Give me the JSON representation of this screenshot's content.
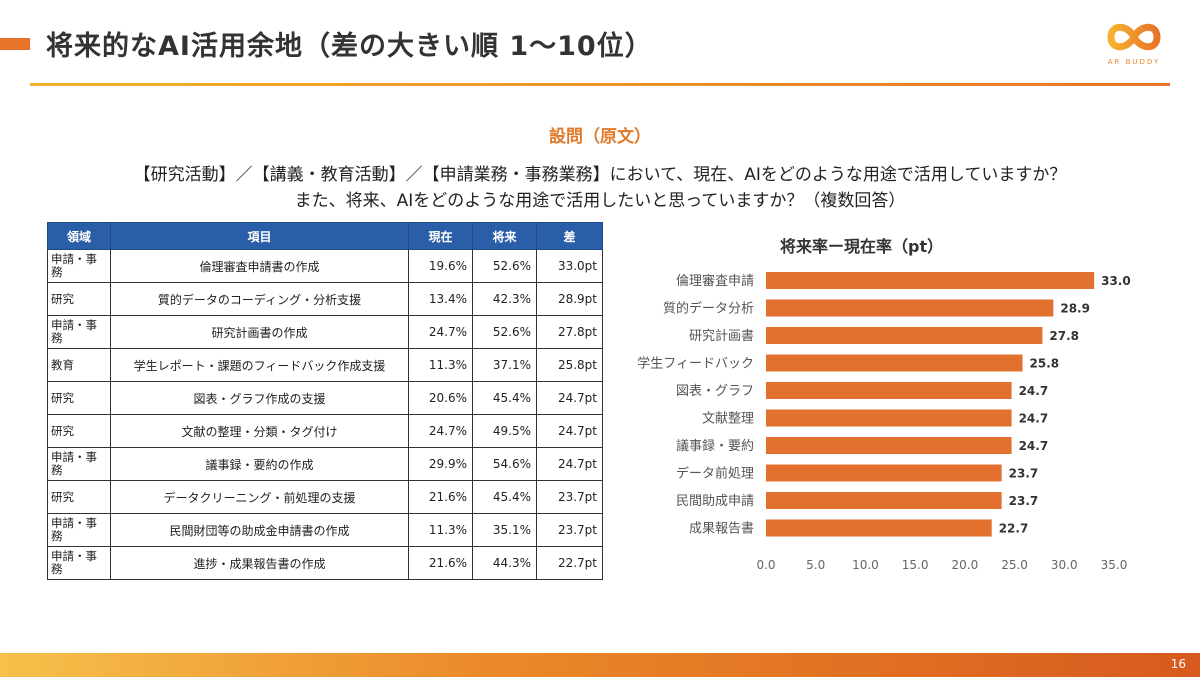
{
  "header": {
    "title": "将来的なAI活用余地（差の大きい順 1〜10位）",
    "logo_text": "AR BUDDY",
    "accent_color": "#e8742a"
  },
  "question": {
    "heading": "設問（原文）",
    "line1": "【研究活動】／【講義・教育活動】／【申請業務・事務業務】において、現在、AIをどのような用途で活用していますか？",
    "line2": "また、将来、AIをどのような用途で活用したいと思っていますか？（複数回答）"
  },
  "table": {
    "headers": [
      "領域",
      "項目",
      "現在",
      "将来",
      "差"
    ],
    "rows": [
      {
        "area": "申請・事務",
        "item": "倫理審査申請書の作成",
        "current": "19.6%",
        "future": "52.6%",
        "diff": "33.0pt"
      },
      {
        "area": "研究",
        "item": "質的データのコーディング・分析支援",
        "current": "13.4%",
        "future": "42.3%",
        "diff": "28.9pt"
      },
      {
        "area": "申請・事務",
        "item": "研究計画書の作成",
        "current": "24.7%",
        "future": "52.6%",
        "diff": "27.8pt"
      },
      {
        "area": "教育",
        "item": "学生レポート・課題のフィードバック作成支援",
        "current": "11.3%",
        "future": "37.1%",
        "diff": "25.8pt"
      },
      {
        "area": "研究",
        "item": "図表・グラフ作成の支援",
        "current": "20.6%",
        "future": "45.4%",
        "diff": "24.7pt"
      },
      {
        "area": "研究",
        "item": "文献の整理・分類・タグ付け",
        "current": "24.7%",
        "future": "49.5%",
        "diff": "24.7pt"
      },
      {
        "area": "申請・事務",
        "item": "議事録・要約の作成",
        "current": "29.9%",
        "future": "54.6%",
        "diff": "24.7pt"
      },
      {
        "area": "研究",
        "item": "データクリーニング・前処理の支援",
        "current": "21.6%",
        "future": "45.4%",
        "diff": "23.7pt"
      },
      {
        "area": "申請・事務",
        "item": "民間財団等の助成金申請書の作成",
        "current": "11.3%",
        "future": "35.1%",
        "diff": "23.7pt"
      },
      {
        "area": "申請・事務",
        "item": "進捗・成果報告書の作成",
        "current": "21.6%",
        "future": "44.3%",
        "diff": "22.7pt"
      }
    ]
  },
  "chart_data": {
    "type": "bar",
    "orientation": "horizontal",
    "title": "将来率ー現在率（pt）",
    "categories": [
      "倫理審査申請",
      "質的データ分析",
      "研究計画書",
      "学生フィードバック",
      "図表・グラフ",
      "文献整理",
      "議事録・要約",
      "データ前処理",
      "民間助成申請",
      "成果報告書"
    ],
    "values": [
      33.0,
      28.9,
      27.8,
      25.8,
      24.7,
      24.7,
      24.7,
      23.7,
      23.7,
      22.7
    ],
    "xlim": [
      0,
      35
    ],
    "xticks": [
      0,
      5,
      10,
      15,
      20,
      25,
      30,
      35
    ],
    "grid": false,
    "data_labels": true,
    "bar_color": "#e2702f"
  },
  "footer": {
    "page": "16"
  }
}
